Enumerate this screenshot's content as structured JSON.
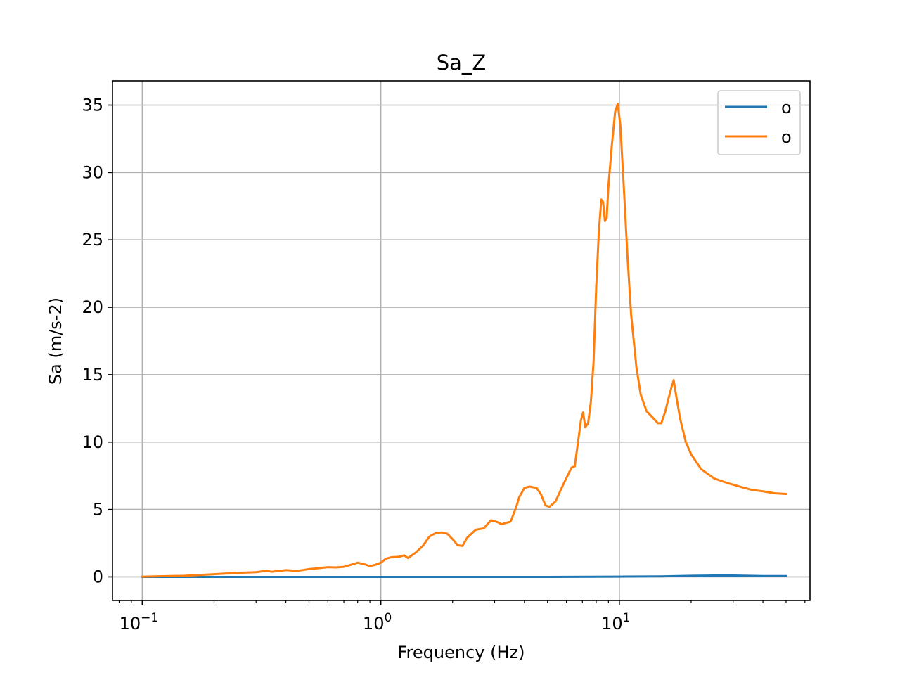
{
  "chart_data": {
    "type": "line",
    "title": "Sa_Z",
    "xlabel": "Frequency (Hz)",
    "ylabel": "Sa (m/s-2)",
    "xscale": "log",
    "xlim": [
      0.075,
      63
    ],
    "ylim": [
      -1.75,
      36.8
    ],
    "grid": true,
    "legend_position": "top-right",
    "x_ticks": [
      {
        "value": 0.1,
        "base": "10",
        "exp": "−1"
      },
      {
        "value": 1,
        "base": "10",
        "exp": "0"
      },
      {
        "value": 10,
        "base": "10",
        "exp": "1"
      }
    ],
    "y_ticks": [
      {
        "value": 0,
        "label": "0"
      },
      {
        "value": 5,
        "label": "5"
      },
      {
        "value": 10,
        "label": "10"
      },
      {
        "value": 15,
        "label": "15"
      },
      {
        "value": 20,
        "label": "20"
      },
      {
        "value": 25,
        "label": "25"
      },
      {
        "value": 30,
        "label": "30"
      },
      {
        "value": 35,
        "label": "35"
      }
    ],
    "series": [
      {
        "name": "o",
        "color": "#1f77b4",
        "points": [
          [
            0.1,
            0.0
          ],
          [
            0.5,
            0.0
          ],
          [
            1.0,
            0.0
          ],
          [
            5.0,
            0.0
          ],
          [
            10.0,
            0.02
          ],
          [
            15.0,
            0.04
          ],
          [
            20.0,
            0.08
          ],
          [
            25.0,
            0.1
          ],
          [
            30.0,
            0.1
          ],
          [
            35.0,
            0.08
          ],
          [
            40.0,
            0.06
          ],
          [
            50.0,
            0.06
          ]
        ]
      },
      {
        "name": "o",
        "color": "#ff7f0e",
        "points": [
          [
            0.1,
            0.02
          ],
          [
            0.15,
            0.08
          ],
          [
            0.2,
            0.2
          ],
          [
            0.25,
            0.3
          ],
          [
            0.3,
            0.35
          ],
          [
            0.33,
            0.45
          ],
          [
            0.35,
            0.38
          ],
          [
            0.4,
            0.5
          ],
          [
            0.45,
            0.45
          ],
          [
            0.5,
            0.58
          ],
          [
            0.55,
            0.65
          ],
          [
            0.6,
            0.72
          ],
          [
            0.65,
            0.7
          ],
          [
            0.7,
            0.75
          ],
          [
            0.75,
            0.9
          ],
          [
            0.8,
            1.05
          ],
          [
            0.85,
            0.95
          ],
          [
            0.9,
            0.8
          ],
          [
            0.95,
            0.9
          ],
          [
            1.0,
            1.05
          ],
          [
            1.05,
            1.35
          ],
          [
            1.1,
            1.45
          ],
          [
            1.2,
            1.5
          ],
          [
            1.25,
            1.6
          ],
          [
            1.3,
            1.4
          ],
          [
            1.4,
            1.8
          ],
          [
            1.5,
            2.3
          ],
          [
            1.6,
            3.0
          ],
          [
            1.7,
            3.25
          ],
          [
            1.8,
            3.3
          ],
          [
            1.9,
            3.2
          ],
          [
            2.0,
            2.8
          ],
          [
            2.1,
            2.35
          ],
          [
            2.2,
            2.3
          ],
          [
            2.3,
            2.9
          ],
          [
            2.5,
            3.5
          ],
          [
            2.7,
            3.6
          ],
          [
            2.9,
            4.2
          ],
          [
            3.1,
            4.05
          ],
          [
            3.2,
            3.9
          ],
          [
            3.5,
            4.1
          ],
          [
            3.7,
            5.2
          ],
          [
            3.8,
            5.9
          ],
          [
            4.0,
            6.6
          ],
          [
            4.2,
            6.7
          ],
          [
            4.5,
            6.6
          ],
          [
            4.7,
            6.1
          ],
          [
            4.9,
            5.3
          ],
          [
            5.1,
            5.2
          ],
          [
            5.4,
            5.6
          ],
          [
            5.8,
            6.8
          ],
          [
            6.1,
            7.6
          ],
          [
            6.3,
            8.1
          ],
          [
            6.5,
            8.2
          ],
          [
            6.7,
            9.9
          ],
          [
            6.9,
            11.6
          ],
          [
            7.05,
            12.2
          ],
          [
            7.2,
            11.1
          ],
          [
            7.4,
            11.4
          ],
          [
            7.6,
            13.0
          ],
          [
            7.8,
            16.0
          ],
          [
            8.0,
            21.5
          ],
          [
            8.2,
            25.5
          ],
          [
            8.4,
            28.0
          ],
          [
            8.55,
            27.8
          ],
          [
            8.7,
            26.4
          ],
          [
            8.85,
            26.6
          ],
          [
            9.0,
            29.0
          ],
          [
            9.3,
            32.0
          ],
          [
            9.6,
            34.5
          ],
          [
            9.85,
            35.1
          ],
          [
            10.1,
            33.5
          ],
          [
            10.4,
            29.5
          ],
          [
            10.8,
            24.0
          ],
          [
            11.2,
            19.5
          ],
          [
            11.8,
            15.5
          ],
          [
            12.3,
            13.5
          ],
          [
            13.0,
            12.3
          ],
          [
            14.0,
            11.7
          ],
          [
            14.5,
            11.4
          ],
          [
            15.0,
            11.4
          ],
          [
            15.6,
            12.3
          ],
          [
            16.0,
            13.1
          ],
          [
            16.5,
            14.0
          ],
          [
            16.9,
            14.6
          ],
          [
            17.4,
            13.2
          ],
          [
            18.0,
            11.7
          ],
          [
            19.0,
            10.0
          ],
          [
            20.0,
            9.1
          ],
          [
            22.0,
            8.0
          ],
          [
            25.0,
            7.3
          ],
          [
            28.0,
            7.0
          ],
          [
            32.0,
            6.7
          ],
          [
            36.0,
            6.45
          ],
          [
            40.0,
            6.35
          ],
          [
            45.0,
            6.2
          ],
          [
            50.0,
            6.15
          ]
        ]
      }
    ]
  }
}
